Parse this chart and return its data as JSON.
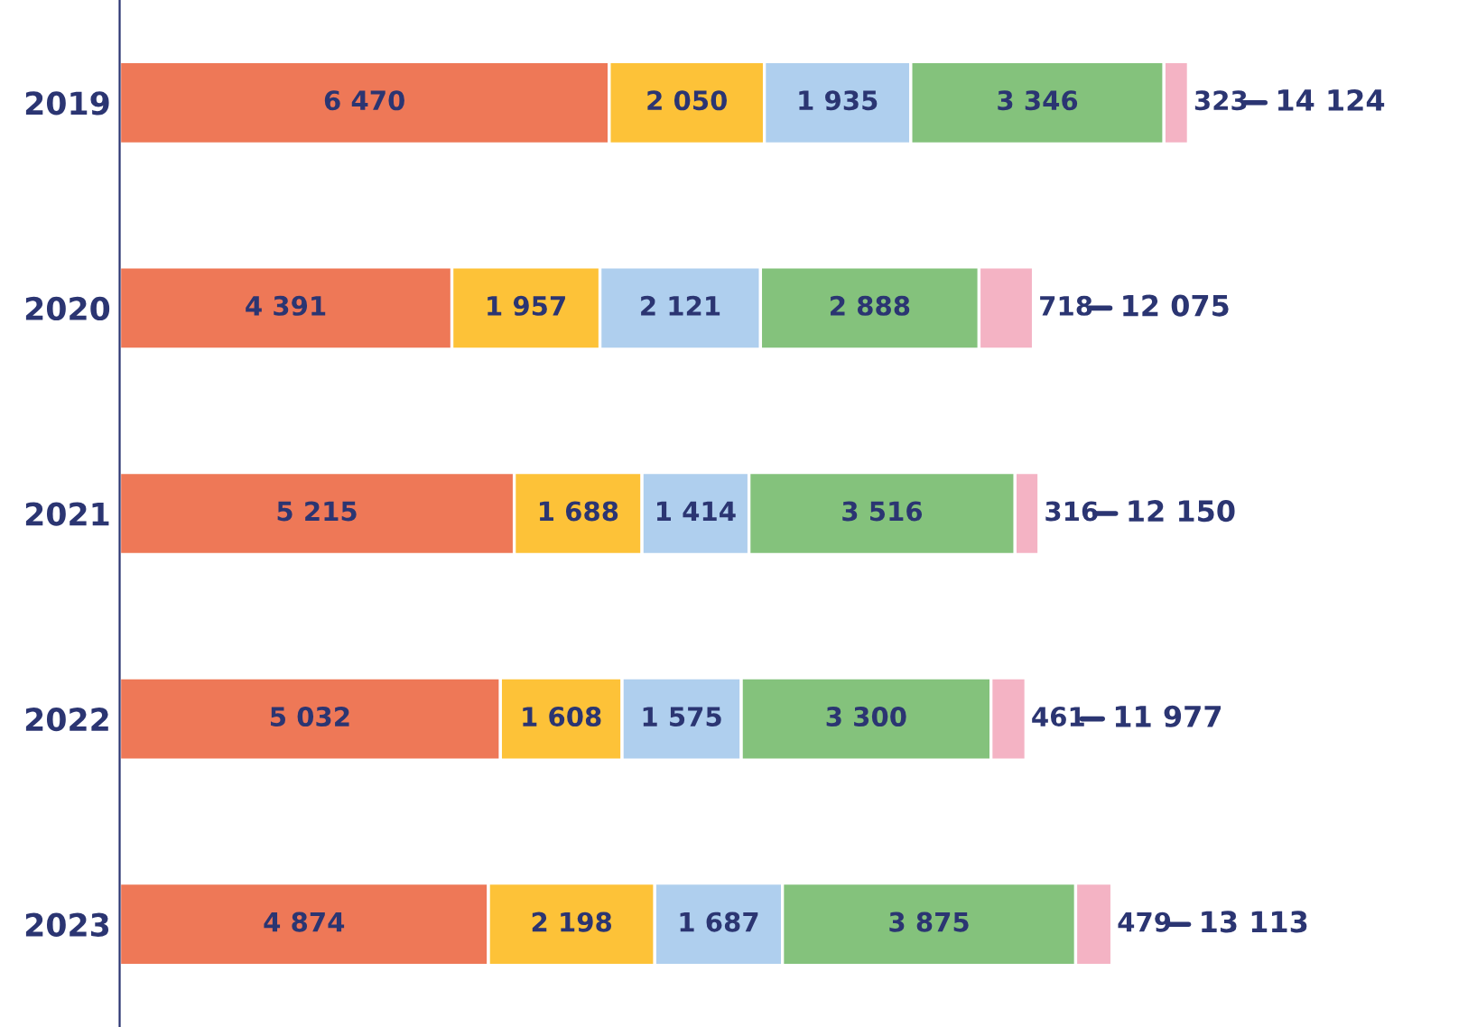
{
  "chart_data": {
    "type": "bar",
    "orientation": "horizontal",
    "stacked": true,
    "categories": [
      "2019",
      "2020",
      "2021",
      "2022",
      "2023"
    ],
    "series": [
      {
        "color": "#ee7857",
        "values": [
          6470,
          4391,
          5215,
          5032,
          4874
        ],
        "value_labels": [
          "6 470",
          "4 391",
          "5 215",
          "5 032",
          "4 874"
        ]
      },
      {
        "color": "#fdc238",
        "values": [
          2050,
          1957,
          1688,
          1608,
          2198
        ],
        "value_labels": [
          "2 050",
          "1 957",
          "1 688",
          "1 608",
          "2 198"
        ]
      },
      {
        "color": "#afcfee",
        "values": [
          1935,
          2121,
          1414,
          1575,
          1687
        ],
        "value_labels": [
          "1 935",
          "2 121",
          "1 414",
          "1 575",
          "1 687"
        ]
      },
      {
        "color": "#84c27c",
        "values": [
          3346,
          2888,
          3516,
          3300,
          3875
        ],
        "value_labels": [
          "3 346",
          "2 888",
          "3 516",
          "3 300",
          "3 875"
        ]
      },
      {
        "color": "#f4b3c4",
        "values": [
          323,
          718,
          316,
          461,
          479
        ],
        "value_labels": [
          "323",
          "718",
          "316",
          "461",
          "479"
        ]
      }
    ],
    "totals": [
      "14 124",
      "12 075",
      "12 150",
      "11 977",
      "13 113"
    ],
    "tick_labels": "y",
    "grid": false,
    "legend": false
  }
}
